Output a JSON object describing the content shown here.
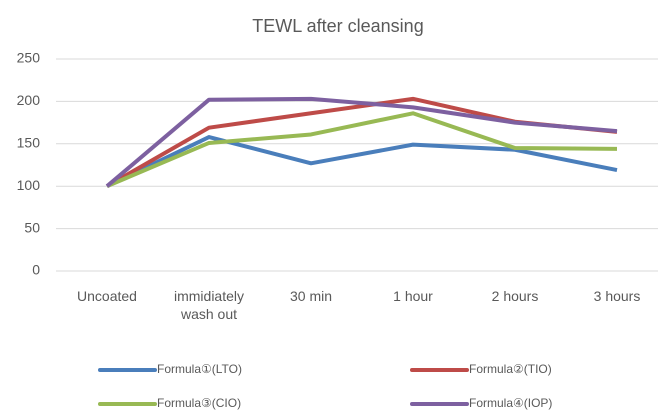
{
  "chart_data": {
    "type": "line",
    "title": "TEWL after cleansing",
    "categories": [
      "Uncoated",
      "immidiately wash out",
      "30 min",
      "1 hour",
      "2 hours",
      "3 hours"
    ],
    "series": [
      {
        "name": "Formula①(LTO)",
        "color": "#4a7ebb",
        "values": [
          100,
          158,
          127,
          149,
          143,
          119
        ]
      },
      {
        "name": "Formula②(TIO)",
        "color": "#be4b48",
        "values": [
          100,
          169,
          186,
          203,
          176,
          164
        ]
      },
      {
        "name": "Formula③(CIO)",
        "color": "#98b954",
        "values": [
          100,
          151,
          161,
          186,
          145,
          144
        ]
      },
      {
        "name": "Formula④(IOP)",
        "color": "#7d60a0",
        "values": [
          100,
          202,
          203,
          193,
          175,
          165
        ]
      }
    ],
    "ylim": [
      0,
      250
    ],
    "yticks": [
      0,
      50,
      100,
      150,
      200,
      250
    ],
    "grid": true,
    "legend": "bottom"
  }
}
